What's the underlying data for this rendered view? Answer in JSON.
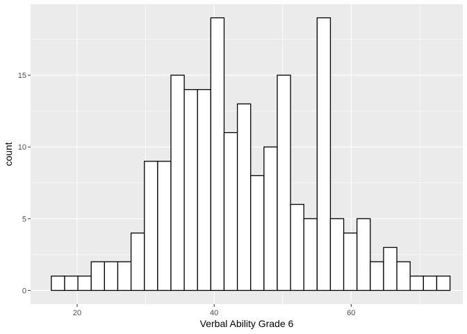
{
  "chart_data": {
    "type": "bar",
    "subtype": "histogram",
    "title": "",
    "xlabel": "Verbal Ability Grade 6",
    "ylabel": "count",
    "xlim": [
      13.2,
      76.3
    ],
    "ylim": [
      -0.95,
      19.95
    ],
    "x_ticks": [
      20,
      40,
      60
    ],
    "y_ticks": [
      0,
      5,
      10,
      15
    ],
    "bin_width": 1.94,
    "bins": [
      {
        "x0": 16.23,
        "count": 1
      },
      {
        "x0": 18.17,
        "count": 1
      },
      {
        "x0": 20.11,
        "count": 1
      },
      {
        "x0": 22.05,
        "count": 2
      },
      {
        "x0": 23.99,
        "count": 2
      },
      {
        "x0": 25.93,
        "count": 2
      },
      {
        "x0": 27.87,
        "count": 4
      },
      {
        "x0": 29.81,
        "count": 9
      },
      {
        "x0": 31.75,
        "count": 9
      },
      {
        "x0": 33.69,
        "count": 15
      },
      {
        "x0": 35.63,
        "count": 14
      },
      {
        "x0": 37.57,
        "count": 14
      },
      {
        "x0": 39.51,
        "count": 19
      },
      {
        "x0": 41.45,
        "count": 11
      },
      {
        "x0": 43.39,
        "count": 13
      },
      {
        "x0": 45.33,
        "count": 8
      },
      {
        "x0": 47.27,
        "count": 10
      },
      {
        "x0": 49.21,
        "count": 15
      },
      {
        "x0": 51.15,
        "count": 6
      },
      {
        "x0": 53.09,
        "count": 5
      },
      {
        "x0": 55.03,
        "count": 19
      },
      {
        "x0": 56.97,
        "count": 5
      },
      {
        "x0": 58.91,
        "count": 4
      },
      {
        "x0": 60.85,
        "count": 5
      },
      {
        "x0": 62.79,
        "count": 2
      },
      {
        "x0": 64.73,
        "count": 3
      },
      {
        "x0": 66.67,
        "count": 2
      },
      {
        "x0": 68.61,
        "count": 1
      },
      {
        "x0": 70.55,
        "count": 1
      },
      {
        "x0": 72.49,
        "count": 1
      }
    ],
    "grid": true,
    "legend": "none",
    "colors": {
      "panel_background": "#ebebeb",
      "grid_major": "#ffffff",
      "bar_fill": "#ffffff",
      "bar_outline": "#000000",
      "tick_mark": "#333333"
    }
  }
}
